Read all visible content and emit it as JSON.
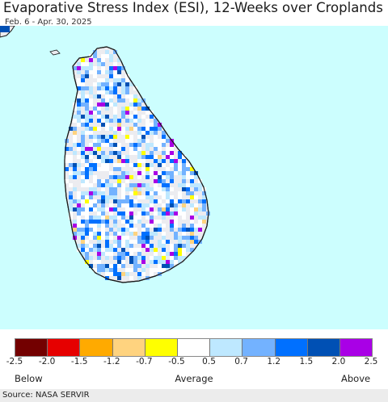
{
  "title": "Evaporative Stress Index (ESI), 12-Weeks over Croplands",
  "subtitle": "Feb. 6 - Apr. 30, 2025",
  "colors": {
    "water": "#ccfefe",
    "land": "#ececf0",
    "coast": "#1a1a1a"
  },
  "legend": {
    "colors": [
      "#730000",
      "#e60000",
      "#ffaa00",
      "#ffd37f",
      "#ffff00",
      "#ffffff",
      "#bee8ff",
      "#73b2ff",
      "#0070ff",
      "#0050b4",
      "#a900e6"
    ],
    "ticks": [
      "-2.5",
      "-2.0",
      "-1.5",
      "-1.2",
      "-0.7",
      "-0.5",
      "0.5",
      "0.7",
      "1.2",
      "1.5",
      "2.0",
      "2.5"
    ],
    "below": "Below",
    "average": "Average",
    "above": "Above"
  },
  "source": "Source: NASA SERVIR"
}
